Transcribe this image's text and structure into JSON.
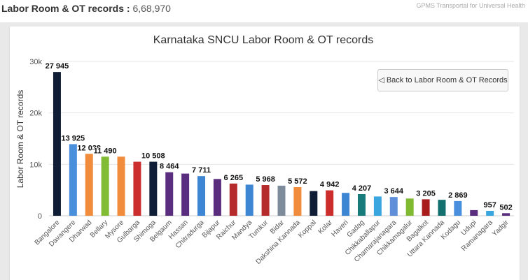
{
  "header": {
    "title": "Labor Room & OT records :",
    "count": "6,68,970",
    "brand": "GPMS Transportal for Universal Health"
  },
  "back_button": {
    "label": "◁ Back to Labor Room & OT Records"
  },
  "chart_data": {
    "type": "bar",
    "title": "Karnataka SNCU Labor Room & OT records",
    "xlabel": "",
    "ylabel": "Labor Room & OT records",
    "ylim": [
      0,
      30000
    ],
    "yticks": [
      0,
      10000,
      20000,
      30000
    ],
    "ytick_labels": [
      "0",
      "10k",
      "20k",
      "30k"
    ],
    "grid": true,
    "categories": [
      "Bangalore",
      "Davangere",
      "Dharwad",
      "Bellary",
      "Mysore",
      "Gulbarga",
      "Shimoga",
      "Belgaum",
      "Hassan",
      "Chitradurga",
      "Bijapur",
      "Raichur",
      "Mandya",
      "Tumkur",
      "Bidar",
      "Dakshina Kannada",
      "Koppal",
      "Kolar",
      "Haveri",
      "Gadag",
      "Chikkaballapur",
      "Chamarajanagara",
      "Chikkamagalur",
      "Bagalkot",
      "Uttara Kannada",
      "Kodagu",
      "Udupi",
      "Ramanagara",
      "Yadgir"
    ],
    "values": [
      27945,
      13925,
      12038,
      11490,
      11490,
      10508,
      10508,
      8464,
      8200,
      7711,
      7150,
      6265,
      6050,
      5968,
      5850,
      5572,
      4800,
      4942,
      4450,
      4207,
      3750,
      3644,
      3350,
      3205,
      3100,
      2869,
      1100,
      957,
      502
    ],
    "labels": [
      "27 945",
      "13 925",
      "12 038",
      "11 490",
      "",
      "",
      "10 508",
      "8 464",
      "",
      "7 711",
      "",
      "6 265",
      "",
      "5 968",
      "",
      "5 572",
      "",
      "4 942",
      "",
      "4 207",
      "",
      "3 644",
      "",
      "3 205",
      "",
      "2 869",
      "",
      "957",
      "502"
    ],
    "colors": [
      "#0f1e36",
      "#4a8fdb",
      "#f08c3c",
      "#82bb34",
      "#f08c3c",
      "#cc2e2e",
      "#0f1e36",
      "#5b2d7e",
      "#5b2d7e",
      "#3d86d4",
      "#5b2d7e",
      "#b52a2a",
      "#3d86d4",
      "#b52a2a",
      "#7d8b9a",
      "#f08c3c",
      "#0f1e36",
      "#cc2e2e",
      "#3d86d4",
      "#177b7b",
      "#3aa6e0",
      "#5e8fd8",
      "#7fba32",
      "#a81c1c",
      "#14706e",
      "#4a8fdb",
      "#5b2d7e",
      "#3aa6e0",
      "#5b2d7e"
    ]
  }
}
